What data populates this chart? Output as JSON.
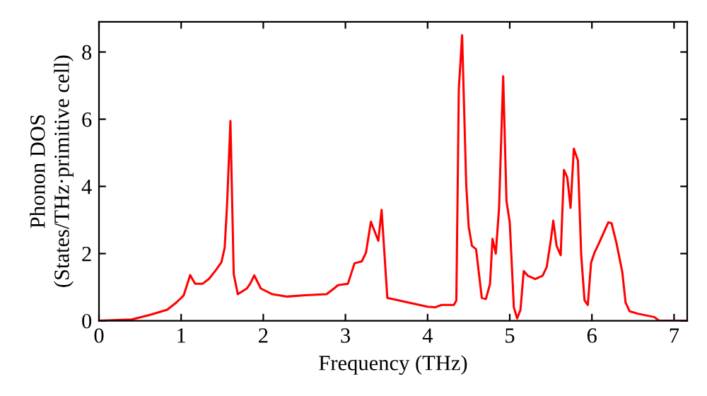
{
  "chart_data": {
    "type": "line",
    "xlabel": "Frequency (THz)",
    "ylabel": "Phonon DOS\n(States/THz·primitive cell)",
    "xlim": [
      0,
      7.16
    ],
    "ylim": [
      0,
      8.9
    ],
    "xticks": [
      0,
      1,
      2,
      3,
      4,
      5,
      6,
      7
    ],
    "yticks": [
      0,
      2,
      4,
      6,
      8
    ],
    "grid": false,
    "legend": false,
    "marker": "none",
    "line_style": "solid",
    "series": [
      {
        "color": "#ff0000",
        "x": [
          0,
          0.4,
          0.63,
          0.83,
          0.94,
          1.03,
          1.11,
          1.17,
          1.26,
          1.34,
          1.43,
          1.49,
          1.53,
          1.56,
          1.6,
          1.64,
          1.69,
          1.8,
          1.84,
          1.89,
          1.97,
          2.11,
          2.29,
          2.51,
          2.77,
          2.86,
          2.91,
          3.03,
          3.11,
          3.2,
          3.25,
          3.31,
          3.4,
          3.44,
          3.51,
          4.0,
          4.09,
          4.17,
          4.32,
          4.35,
          4.38,
          4.42,
          4.47,
          4.5,
          4.54,
          4.59,
          4.66,
          4.71,
          4.76,
          4.79,
          4.83,
          4.87,
          4.92,
          4.96,
          5.0,
          5.05,
          5.09,
          5.13,
          5.17,
          5.22,
          5.31,
          5.4,
          5.45,
          5.5,
          5.53,
          5.57,
          5.62,
          5.66,
          5.7,
          5.74,
          5.78,
          5.83,
          5.87,
          5.91,
          5.95,
          5.99,
          6.03,
          6.09,
          6.2,
          6.24,
          6.3,
          6.37,
          6.41,
          6.46,
          6.56,
          6.76,
          6.82,
          7.16
        ],
        "values": [
          0,
          0.04,
          0.18,
          0.33,
          0.54,
          0.75,
          1.36,
          1.1,
          1.1,
          1.25,
          1.53,
          1.74,
          2.17,
          3.5,
          5.95,
          1.39,
          0.79,
          0.96,
          1.1,
          1.35,
          0.96,
          0.79,
          0.72,
          0.76,
          0.79,
          0.96,
          1.06,
          1.1,
          1.71,
          1.77,
          2.03,
          2.95,
          2.38,
          3.3,
          0.68,
          0.42,
          0.4,
          0.47,
          0.47,
          0.6,
          6.9,
          8.5,
          4.06,
          2.8,
          2.23,
          2.13,
          0.68,
          0.65,
          1.1,
          2.44,
          2.0,
          3.36,
          7.28,
          3.57,
          2.93,
          0.4,
          0.07,
          0.32,
          1.48,
          1.34,
          1.24,
          1.34,
          1.6,
          2.4,
          2.98,
          2.23,
          1.95,
          4.49,
          4.27,
          3.36,
          5.12,
          4.77,
          1.95,
          0.61,
          0.47,
          1.73,
          2.02,
          2.33,
          2.93,
          2.9,
          2.3,
          1.45,
          0.54,
          0.28,
          0.21,
          0.11,
          0,
          0
        ]
      }
    ]
  }
}
